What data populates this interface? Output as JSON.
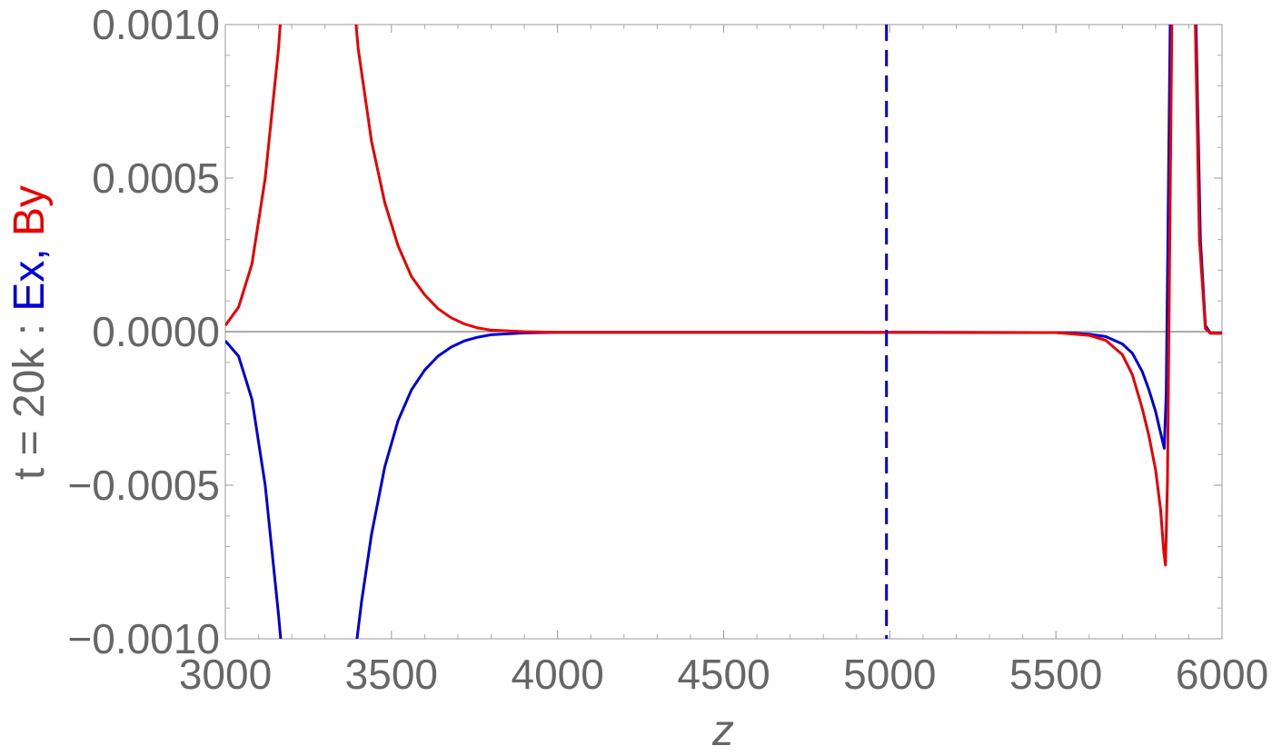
{
  "chart_data": {
    "type": "line",
    "title": "",
    "xlabel": "z",
    "ylabel": {
      "prefix": "t = 20k : ",
      "ex": "Ex",
      "sep": ", ",
      "by": "By"
    },
    "xlim": [
      3000,
      6000
    ],
    "ylim": [
      -0.001,
      0.001
    ],
    "x_ticks": [
      3000,
      3500,
      4000,
      4500,
      5000,
      5500,
      6000
    ],
    "x_tick_labels": [
      "3000",
      "3500",
      "4000",
      "4500",
      "5000",
      "5500",
      "6000"
    ],
    "y_ticks": [
      0.001,
      0.0005,
      0.0,
      -0.0005,
      -0.001
    ],
    "y_tick_labels": [
      "0.0010",
      "0.0005",
      "0.0000",
      "−0.0005",
      "−0.0010"
    ],
    "grid": false,
    "frame": true,
    "zero_line": true,
    "series": [
      {
        "name": "Ex",
        "color": "#0000dd",
        "x": [
          3000,
          3040,
          3080,
          3120,
          3160,
          3175,
          3385,
          3410,
          3440,
          3480,
          3520,
          3560,
          3600,
          3640,
          3680,
          3720,
          3760,
          3800,
          3900,
          4000,
          4500,
          5000,
          5500,
          5600,
          5650,
          5700,
          5730,
          5760,
          5780,
          5800,
          5815,
          5826,
          5832,
          5845,
          5870,
          5900,
          5920,
          5935,
          5950,
          5965,
          5980,
          6000
        ],
        "y": [
          -3e-05,
          -8e-05,
          -0.00022,
          -0.0005,
          -0.00092,
          -0.0011,
          -0.0011,
          -0.00088,
          -0.00066,
          -0.00044,
          -0.00029,
          -0.00019,
          -0.000125,
          -8e-05,
          -5e-05,
          -3e-05,
          -1.8e-05,
          -1e-05,
          -4e-06,
          -2e-06,
          -2e-06,
          -2e-06,
          -3e-06,
          -8e-06,
          -1.6e-05,
          -4e-05,
          -7e-05,
          -0.00013,
          -0.00019,
          -0.00026,
          -0.00033,
          -0.00038,
          -0.0002,
          0.0011,
          0.0011,
          0.0011,
          0.0011,
          0.0003,
          2e-05,
          -5e-06,
          -5e-06,
          -5e-06
        ]
      },
      {
        "name": "By",
        "color": "#ee0000",
        "x": [
          3000,
          3040,
          3080,
          3120,
          3160,
          3172,
          3385,
          3400,
          3440,
          3480,
          3520,
          3560,
          3600,
          3640,
          3680,
          3720,
          3760,
          3800,
          3900,
          4000,
          4500,
          5000,
          5500,
          5600,
          5650,
          5700,
          5730,
          5760,
          5780,
          5800,
          5815,
          5825,
          5830,
          5836,
          5850,
          5870,
          5900,
          5918,
          5932,
          5950,
          5965,
          5980,
          6000
        ],
        "y": [
          2e-05,
          8e-05,
          0.00022,
          0.0005,
          0.00092,
          0.0011,
          0.0011,
          0.00092,
          0.00062,
          0.00042,
          0.00028,
          0.00018,
          0.00012,
          7.5e-05,
          4.5e-05,
          2.5e-05,
          1.2e-05,
          5e-06,
          0.0,
          -2e-06,
          -2e-06,
          -2e-06,
          -3e-06,
          -1.2e-05,
          -2.8e-05,
          -7.5e-05,
          -0.00014,
          -0.00025,
          -0.00034,
          -0.00045,
          -0.00058,
          -0.00072,
          -0.00076,
          -0.00048,
          0.0011,
          0.0011,
          0.0011,
          0.0011,
          0.0003,
          1e-05,
          -5e-06,
          -5e-06,
          -5e-06
        ]
      }
    ],
    "annotations": [
      {
        "type": "vline",
        "x": 4990,
        "color": "#0000dd",
        "style": "dashed"
      }
    ]
  }
}
